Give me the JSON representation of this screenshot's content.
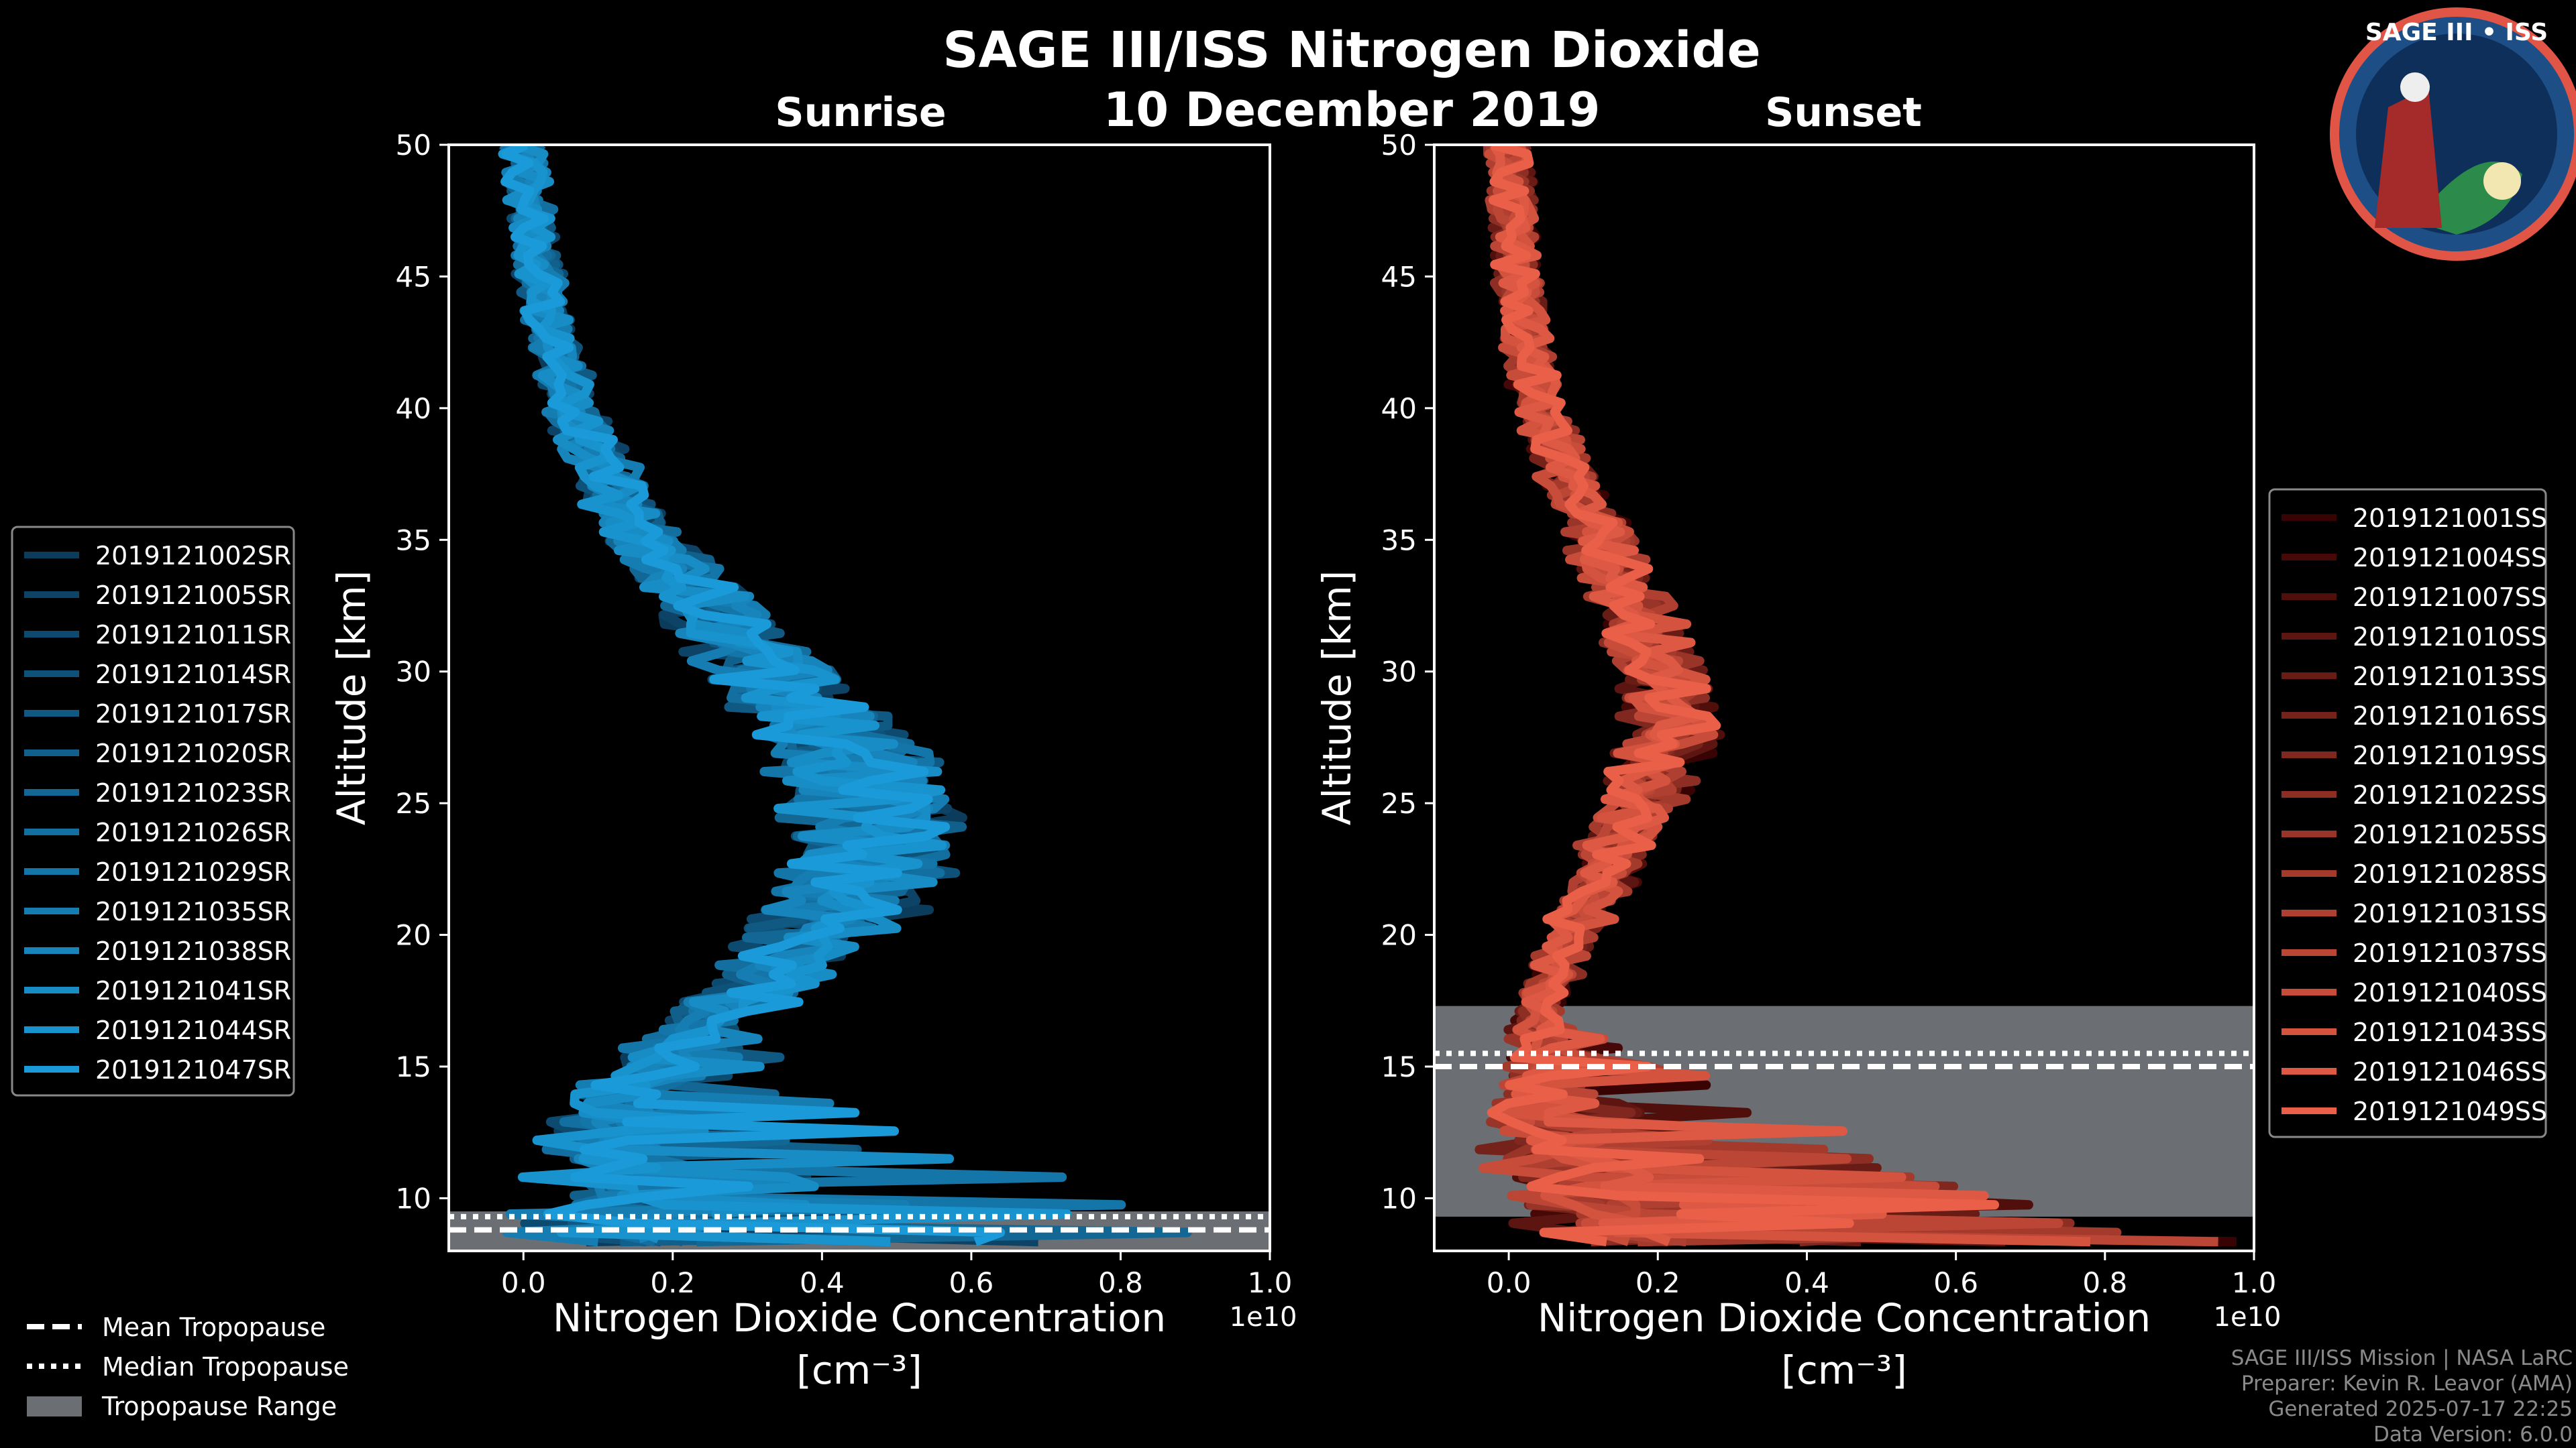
{
  "title": "SAGE III/ISS Nitrogen Dioxide",
  "date": "10 December 2019",
  "logo": {
    "text": "SAGE III • ISS"
  },
  "footer": [
    "SAGE III/ISS Mission | NASA LaRC",
    "Preparer: Kevin R. Leavor (AMA)",
    "Generated 2025-07-17 22:25",
    "Data Version: 6.0.0"
  ],
  "tropo_legend": {
    "mean": "Mean Tropopause",
    "median": "Median Tropopause",
    "range": "Tropopause Range"
  },
  "chart_data": [
    {
      "type": "line",
      "title": "Sunrise",
      "xlabel": "Nitrogen Dioxide Concentration",
      "xunit": "[cm⁻³]",
      "xscale_label": "1e10",
      "ylabel": "Altitude [km]",
      "xlim": [
        -0.1,
        1.0
      ],
      "ylim": [
        8,
        50
      ],
      "xticks": [
        "0.0",
        "0.2",
        "0.4",
        "0.6",
        "0.8",
        "1.0"
      ],
      "yticks": [
        "10",
        "15",
        "20",
        "25",
        "30",
        "35",
        "40",
        "45",
        "50"
      ],
      "color_start": "#0b3c5c",
      "color_end": "#1a9ad8",
      "mean_profile": {
        "alt": [
          50,
          45,
          40,
          35,
          30,
          27,
          25,
          22,
          20,
          18,
          16,
          14,
          12,
          10,
          8.5
        ],
        "conc": [
          0.0,
          0.02,
          0.06,
          0.16,
          0.32,
          0.42,
          0.45,
          0.45,
          0.38,
          0.3,
          0.2,
          0.12,
          0.1,
          0.12,
          0.1
        ]
      },
      "tropopause": {
        "mean": 8.8,
        "median": 9.3,
        "range": [
          8.0,
          9.5
        ]
      },
      "legend_position": "left",
      "series": [
        "2019121002SR",
        "2019121005SR",
        "2019121011SR",
        "2019121014SR",
        "2019121017SR",
        "2019121020SR",
        "2019121023SR",
        "2019121026SR",
        "2019121029SR",
        "2019121035SR",
        "2019121038SR",
        "2019121041SR",
        "2019121044SR",
        "2019121047SR"
      ]
    },
    {
      "type": "line",
      "title": "Sunset",
      "xlabel": "Nitrogen Dioxide Concentration",
      "xunit": "[cm⁻³]",
      "xscale_label": "1e10",
      "ylabel": "Altitude [km]",
      "xlim": [
        -0.1,
        1.0
      ],
      "ylim": [
        8,
        50
      ],
      "xticks": [
        "0.0",
        "0.2",
        "0.4",
        "0.6",
        "0.8",
        "1.0"
      ],
      "yticks": [
        "10",
        "15",
        "20",
        "25",
        "30",
        "35",
        "40",
        "45",
        "50"
      ],
      "color_start": "#3a0303",
      "color_end": "#ea5f48",
      "mean_profile": {
        "alt": [
          50,
          45,
          40,
          35,
          30,
          28,
          25,
          22,
          20,
          18,
          16,
          14,
          12,
          10,
          8.5
        ],
        "conc": [
          0.0,
          0.01,
          0.04,
          0.12,
          0.2,
          0.22,
          0.17,
          0.12,
          0.08,
          0.05,
          0.03,
          0.03,
          0.05,
          0.08,
          0.12
        ]
      },
      "tropopause": {
        "mean": 15.0,
        "median": 15.5,
        "range": [
          9.3,
          17.3
        ]
      },
      "legend_position": "right",
      "series": [
        "2019121001SS",
        "2019121004SS",
        "2019121007SS",
        "2019121010SS",
        "2019121013SS",
        "2019121016SS",
        "2019121019SS",
        "2019121022SS",
        "2019121025SS",
        "2019121028SS",
        "2019121031SS",
        "2019121037SS",
        "2019121040SS",
        "2019121043SS",
        "2019121046SS",
        "2019121049SS"
      ]
    }
  ]
}
